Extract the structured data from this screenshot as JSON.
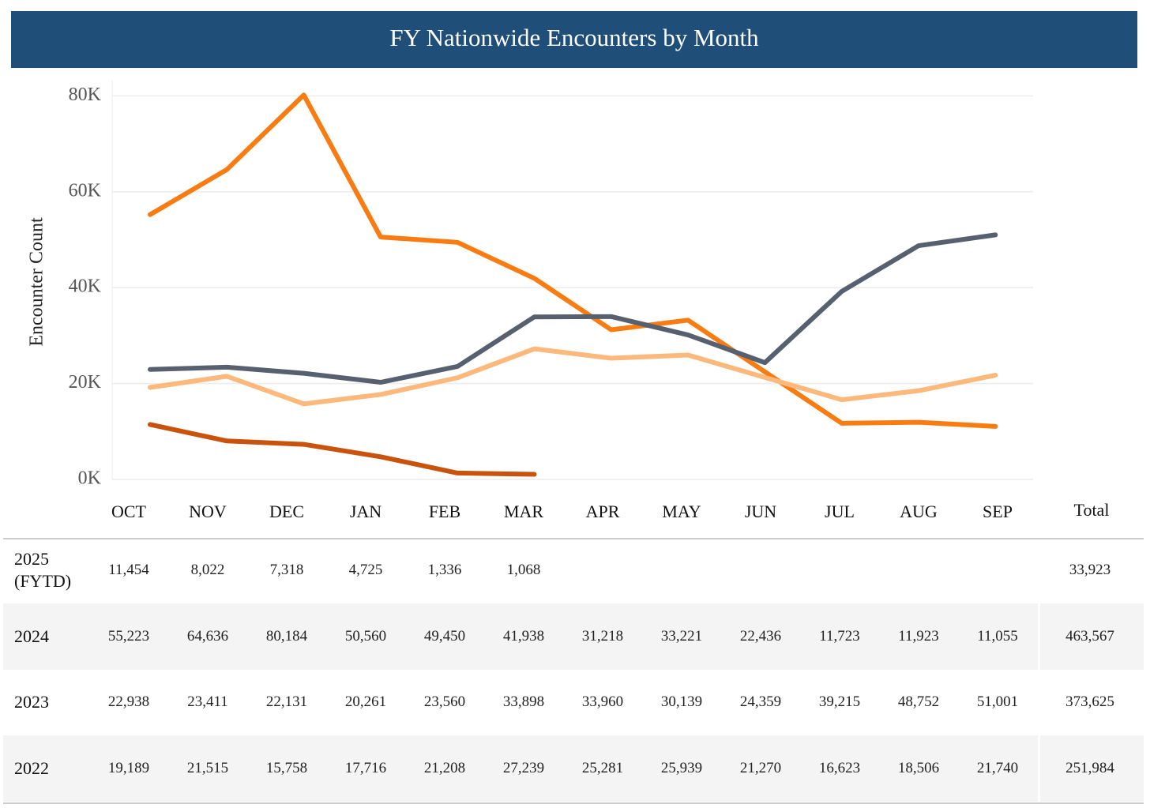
{
  "chart_data": {
    "type": "line",
    "title": "FY Nationwide Encounters by Month",
    "y_label": "Encounter Count",
    "categories": [
      "OCT",
      "NOV",
      "DEC",
      "JAN",
      "FEB",
      "MAR",
      "APR",
      "MAY",
      "JUN",
      "JUL",
      "AUG",
      "SEP"
    ],
    "total_header": "Total",
    "ylim": [
      0,
      85000
    ],
    "yticks": [
      {
        "value": 0,
        "label": "0K"
      },
      {
        "value": 20000,
        "label": "20K"
      },
      {
        "value": 40000,
        "label": "40K"
      },
      {
        "value": 60000,
        "label": "60K"
      },
      {
        "value": 80000,
        "label": "80K"
      }
    ],
    "grid": true,
    "series": [
      {
        "name": "2025 (FYTD)",
        "color": "#c9520c",
        "values": [
          11454,
          8022,
          7318,
          4725,
          1336,
          1068,
          null,
          null,
          null,
          null,
          null,
          null
        ],
        "value_labels": [
          "11,454",
          "8,022",
          "7,318",
          "4,725",
          "1,336",
          "1,068",
          null,
          null,
          null,
          null,
          null,
          null
        ],
        "total": "33,923"
      },
      {
        "name": "2024",
        "color": "#f97c12",
        "values": [
          55223,
          64636,
          80184,
          50560,
          49450,
          41938,
          31218,
          33221,
          22436,
          11723,
          11923,
          11055
        ],
        "value_labels": [
          "55,223",
          "64,636",
          "80,184",
          "50,560",
          "49,450",
          "41,938",
          "31,218",
          "33,221",
          "22,436",
          "11,723",
          "11,923",
          "11,055"
        ],
        "total": "463,567"
      },
      {
        "name": "2023",
        "color": "#57606e",
        "values": [
          22938,
          23411,
          22131,
          20261,
          23560,
          33898,
          33960,
          30139,
          24359,
          39215,
          48752,
          51001
        ],
        "value_labels": [
          "22,938",
          "23,411",
          "22,131",
          "20,261",
          "23,560",
          "33,898",
          "33,960",
          "30,139",
          "24,359",
          "39,215",
          "48,752",
          "51,001"
        ],
        "total": "373,625"
      },
      {
        "name": "2022",
        "color": "#fdb87b",
        "values": [
          19189,
          21515,
          15758,
          17716,
          21208,
          27239,
          25281,
          25939,
          21270,
          16623,
          18506,
          21740
        ],
        "value_labels": [
          "19,189",
          "21,515",
          "15,758",
          "17,716",
          "21,208",
          "27,239",
          "25,281",
          "25,939",
          "21,270",
          "16,623",
          "18,506",
          "21,740"
        ],
        "total": "251,984"
      }
    ]
  }
}
